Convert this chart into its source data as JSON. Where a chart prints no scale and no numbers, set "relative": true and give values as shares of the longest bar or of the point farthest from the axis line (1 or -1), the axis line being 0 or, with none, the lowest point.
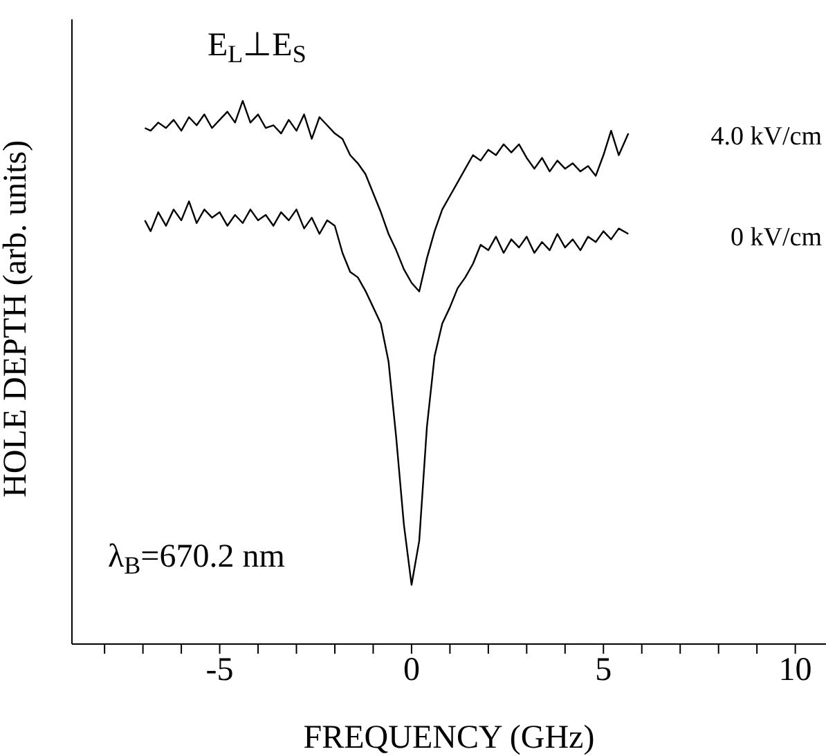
{
  "chart_data": {
    "type": "line",
    "relative": true,
    "xlabel": "FREQUENCY (GHz)",
    "ylabel": "HOLE DEPTH (arb. units)",
    "annotations": [
      "E$_{L}$⊥E$_{S}$",
      "λ$_{B}$=670.2  nm"
    ],
    "xlim": [
      -8.85,
      10.8
    ],
    "xticks": [
      {
        "value": -8,
        "label": null
      },
      {
        "value": -7,
        "label": null
      },
      {
        "value": -6,
        "label": null
      },
      -5,
      {
        "value": -4,
        "label": null
      },
      {
        "value": -3,
        "label": null
      },
      {
        "value": -2,
        "label": null
      },
      {
        "value": -1,
        "label": null
      },
      0,
      {
        "value": 1,
        "label": null
      },
      {
        "value": 2,
        "label": null
      },
      {
        "value": 3,
        "label": null
      },
      {
        "value": 4,
        "label": null
      },
      5,
      {
        "value": 6,
        "label": null
      },
      {
        "value": 7,
        "label": null
      },
      {
        "value": 8,
        "label": null
      },
      {
        "value": 9,
        "label": null
      },
      10
    ],
    "grid": false,
    "legend": false,
    "marker": "none",
    "x": [
      -6.95,
      -6.8,
      -6.6,
      -6.4,
      -6.2,
      -6.0,
      -5.8,
      -5.6,
      -5.4,
      -5.2,
      -5.0,
      -4.8,
      -4.6,
      -4.4,
      -4.2,
      -4.0,
      -3.8,
      -3.6,
      -3.4,
      -3.2,
      -3.0,
      -2.8,
      -2.6,
      -2.4,
      -2.2,
      -2.0,
      -1.8,
      -1.6,
      -1.4,
      -1.2,
      -1.0,
      -0.8,
      -0.6,
      -0.4,
      -0.2,
      0,
      0.2,
      0.4,
      0.6,
      0.8,
      1.0,
      1.2,
      1.4,
      1.6,
      1.8,
      2.0,
      2.2,
      2.4,
      2.6,
      2.8,
      3.0,
      3.2,
      3.4,
      3.6,
      3.8,
      4.0,
      4.2,
      4.4,
      4.6,
      4.8,
      5.0,
      5.2,
      5.4,
      5.65
    ],
    "series": [
      {
        "name": "4.0 kV/cm",
        "color": "#000000",
        "values": [
          0.95,
          0.945,
          0.96,
          0.95,
          0.965,
          0.945,
          0.97,
          0.955,
          0.975,
          0.95,
          0.965,
          0.98,
          0.96,
          1.0,
          0.96,
          0.975,
          0.95,
          0.955,
          0.94,
          0.965,
          0.945,
          0.975,
          0.93,
          0.97,
          0.955,
          0.94,
          0.93,
          0.9,
          0.885,
          0.865,
          0.83,
          0.795,
          0.755,
          0.725,
          0.69,
          0.665,
          0.649,
          0.71,
          0.76,
          0.8,
          0.825,
          0.85,
          0.875,
          0.9,
          0.89,
          0.91,
          0.9,
          0.92,
          0.905,
          0.92,
          0.895,
          0.875,
          0.895,
          0.87,
          0.89,
          0.875,
          0.885,
          0.87,
          0.88,
          0.862,
          0.9,
          0.945,
          0.9,
          0.94
        ]
      },
      {
        "name": "0  kV/cm",
        "color": "#000000",
        "values": [
          0.78,
          0.76,
          0.795,
          0.77,
          0.8,
          0.78,
          0.815,
          0.775,
          0.8,
          0.785,
          0.795,
          0.77,
          0.79,
          0.775,
          0.8,
          0.78,
          0.79,
          0.77,
          0.795,
          0.78,
          0.8,
          0.765,
          0.785,
          0.755,
          0.78,
          0.77,
          0.72,
          0.685,
          0.675,
          0.65,
          0.62,
          0.59,
          0.52,
          0.38,
          0.22,
          0.109,
          0.19,
          0.4,
          0.53,
          0.59,
          0.62,
          0.655,
          0.675,
          0.7,
          0.735,
          0.725,
          0.75,
          0.72,
          0.745,
          0.73,
          0.75,
          0.72,
          0.74,
          0.725,
          0.755,
          0.73,
          0.745,
          0.725,
          0.75,
          0.74,
          0.76,
          0.745,
          0.765,
          0.755
        ]
      }
    ]
  }
}
